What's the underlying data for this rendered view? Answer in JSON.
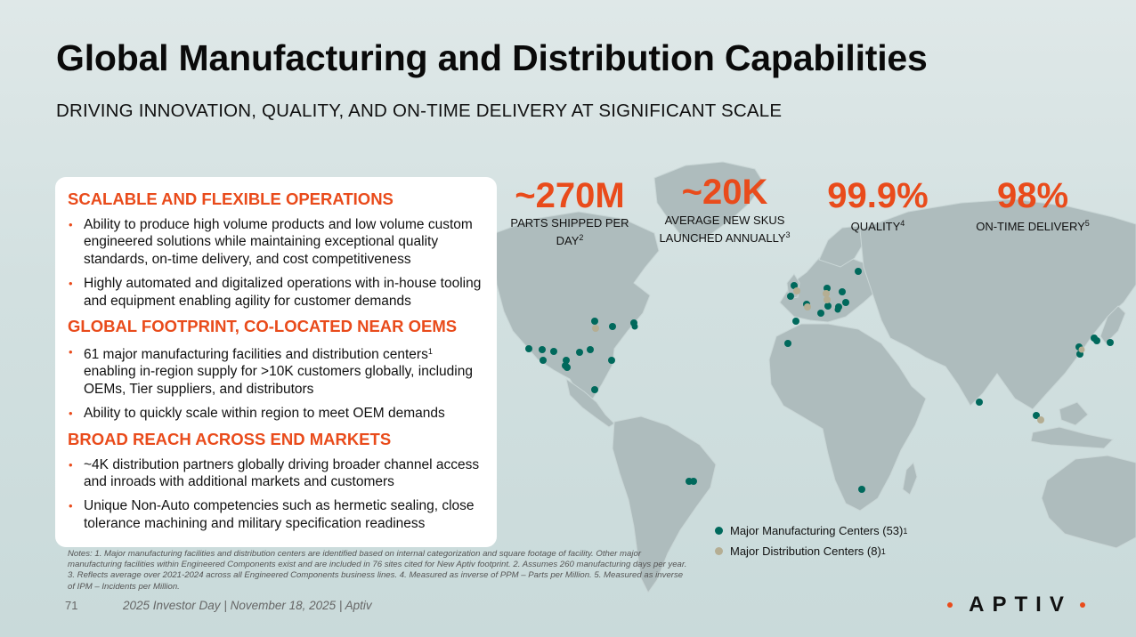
{
  "header": {
    "title": "Global Manufacturing and Distribution Capabilities",
    "subtitle": "DRIVING INNOVATION, QUALITY, AND ON-TIME DELIVERY AT SIGNIFICANT SCALE"
  },
  "colors": {
    "accent": "#e94b1b",
    "manufacturing_dot": "#00695c",
    "distribution_dot": "#b5ae93",
    "land": "#aebcbd"
  },
  "card": {
    "sections": [
      {
        "heading": "SCALABLE AND FLEXIBLE OPERATIONS",
        "bullets": [
          "Ability to produce high volume products and low volume custom engineered solutions while maintaining exceptional quality standards, on-time delivery, and cost competitiveness",
          "Highly automated and digitalized operations with in-house tooling and equipment enabling agility for customer demands"
        ]
      },
      {
        "heading": "GLOBAL FOOTPRINT, CO-LOCATED NEAR OEMS",
        "bullets": [
          "61 major manufacturing facilities and distribution centers",
          "Ability to quickly scale within region to meet OEM demands"
        ],
        "bullet1_sup": "1",
        "bullet1_rest": "enabling in-region supply for >10K customers globally, including OEMs, Tier suppliers, and distributors"
      },
      {
        "heading": "BROAD REACH ACROSS END MARKETS",
        "bullets": [
          "~4K distribution partners globally driving broader channel access and inroads with additional markets and customers",
          "Unique Non-Auto competencies such as hermetic sealing, close tolerance machining and military specification readiness"
        ]
      }
    ]
  },
  "stats": [
    {
      "value": "~270M",
      "label": "PARTS SHIPPED PER DAY",
      "sup": "2"
    },
    {
      "value": "~20K",
      "label": "AVERAGE NEW SKUS LAUNCHED ANNUALLY",
      "sup": "3"
    },
    {
      "value": "99.9%",
      "label": "QUALITY",
      "sup": "4"
    },
    {
      "value": "98%",
      "label": "ON-TIME DELIVERY",
      "sup": "5"
    }
  ],
  "legend": {
    "manufacturing": "Major Manufacturing Centers (53)",
    "manufacturing_sup": "1",
    "distribution": "Major Distribution Centers (8)",
    "distribution_sup": "1"
  },
  "notes": "Notes: 1. Major manufacturing facilities and distribution centers are identified based on internal categorization and square footage of facility. Other major manufacturing facilities within Engineered Components exist and are included in 76 sites cited for New Aptiv footprint. 2. Assumes 260 manufacturing days per year. 3. Reflects average over 2021-2024 across all Engineered Components business lines. 4. Measured as inverse of PPM – Parts per Million. 5. Measured as inverse of IPM – Incidents per Million.",
  "footer": {
    "page_number": "71",
    "text": "2025 Investor Day | November 18, 2025 | Aptiv"
  },
  "logo": "APTIV"
}
